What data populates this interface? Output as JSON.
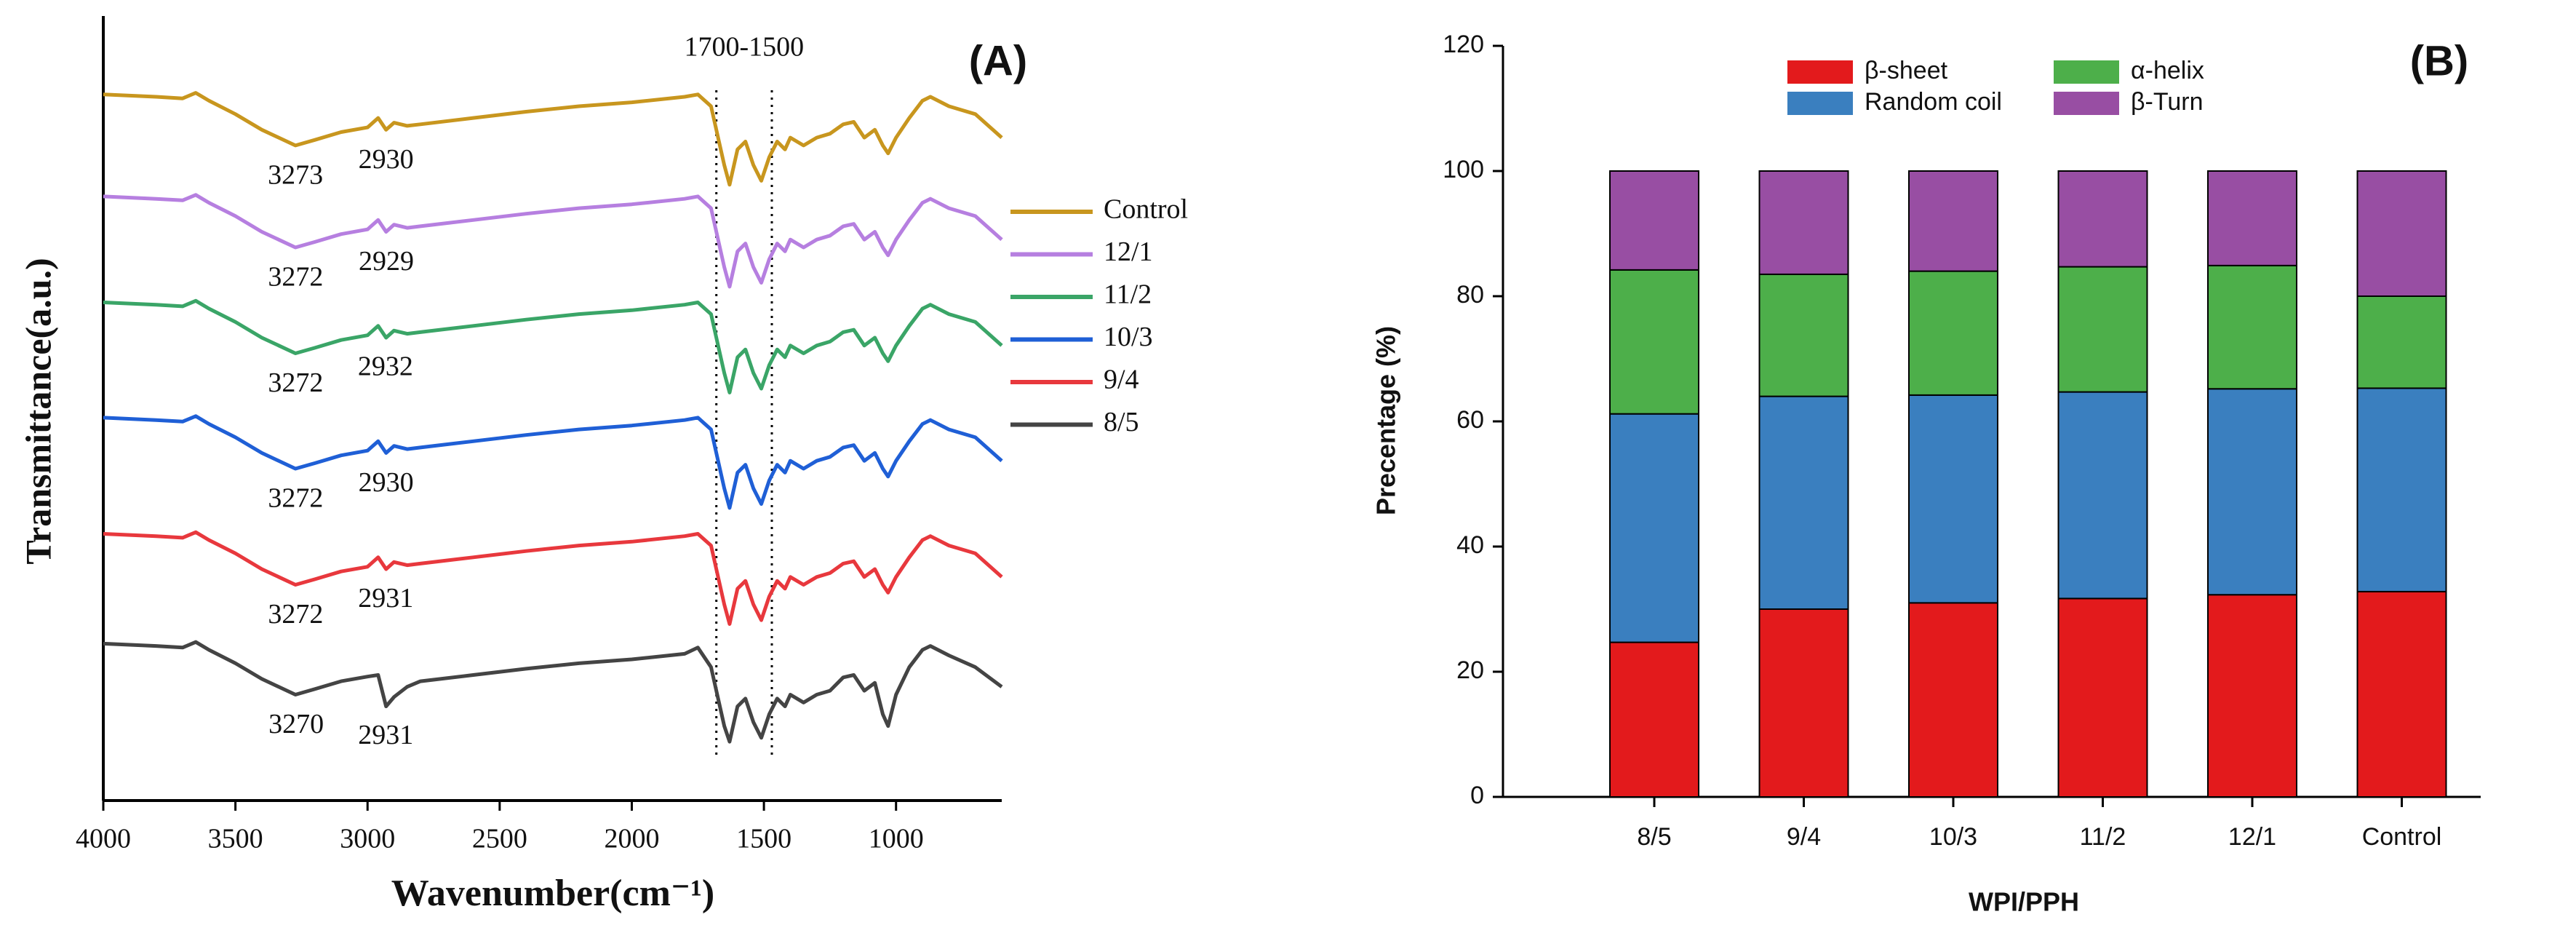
{
  "chart_data": [
    {
      "type": "line",
      "panel_label": "(A)",
      "x_label": "Wavenumber(cm⁻¹)",
      "y_label": "Transmittance(a.u.)",
      "xlim": [
        4000,
        600
      ],
      "xticks": [
        4000,
        3500,
        3000,
        2500,
        2000,
        1500,
        1000
      ],
      "ylim": [
        0,
        100
      ],
      "grid": false,
      "region": {
        "label": "1700-1500",
        "bounds": [
          1680,
          1470
        ]
      },
      "x": [
        4000,
        3800,
        3700,
        3650,
        3600,
        3500,
        3400,
        3273,
        3200,
        3100,
        3000,
        2960,
        2930,
        2900,
        2850,
        2800,
        2600,
        2400,
        2200,
        2000,
        1800,
        1750,
        1700,
        1650,
        1630,
        1600,
        1570,
        1540,
        1510,
        1480,
        1450,
        1420,
        1400,
        1350,
        1300,
        1250,
        1200,
        1160,
        1120,
        1080,
        1050,
        1030,
        1000,
        950,
        900,
        870,
        800,
        700,
        600
      ],
      "series": [
        {
          "name": "Control",
          "color": "#c8961e",
          "peaks": [
            3273,
            2930
          ],
          "values": [
            90,
            89.7,
            89.5,
            90.2,
            89.2,
            87.5,
            85.5,
            83.5,
            84.2,
            85.2,
            85.8,
            87,
            85.5,
            86.4,
            86,
            86.2,
            87,
            87.8,
            88.5,
            89,
            89.7,
            90,
            88.5,
            81,
            78.5,
            83,
            84,
            81,
            79,
            82,
            84,
            83,
            84.5,
            83.5,
            84.5,
            85,
            86.2,
            86.5,
            84.5,
            85.5,
            83.5,
            82.5,
            84.5,
            87,
            89.2,
            89.7,
            88.5,
            87.5,
            84.5
          ]
        },
        {
          "name": "12/1",
          "color": "#b67fe0",
          "peaks": [
            3272,
            2929
          ],
          "values": [
            77,
            76.7,
            76.5,
            77.2,
            76.2,
            74.5,
            72.5,
            70.5,
            71.2,
            72.2,
            72.8,
            74,
            72.5,
            73.4,
            73,
            73.2,
            74,
            74.8,
            75.5,
            76,
            76.7,
            77,
            75.5,
            68,
            65.5,
            70,
            71,
            68,
            66,
            69,
            71,
            70,
            71.5,
            70.5,
            71.5,
            72,
            73.2,
            73.5,
            71.5,
            72.5,
            70.5,
            69.5,
            71.5,
            74,
            76.2,
            76.7,
            75.5,
            74.5,
            71.5
          ]
        },
        {
          "name": "11/2",
          "color": "#3aa567",
          "peaks": [
            3272,
            2932
          ],
          "values": [
            63.5,
            63.2,
            63,
            63.7,
            62.7,
            61,
            59,
            57,
            57.7,
            58.7,
            59.3,
            60.5,
            59,
            59.9,
            59.5,
            59.7,
            60.5,
            61.3,
            62,
            62.5,
            63.2,
            63.5,
            62,
            54.5,
            52,
            56.5,
            57.5,
            54.5,
            52.5,
            55.5,
            57.5,
            56.5,
            58,
            57,
            58,
            58.5,
            59.7,
            60,
            58,
            59,
            57,
            56,
            58,
            60.5,
            62.7,
            63.2,
            62,
            61,
            58
          ]
        },
        {
          "name": "10/3",
          "color": "#1f5fd6",
          "peaks": [
            3272,
            2930
          ],
          "values": [
            48.8,
            48.5,
            48.3,
            49,
            48,
            46.3,
            44.3,
            42.3,
            43,
            44,
            44.6,
            45.8,
            44.3,
            45.2,
            44.8,
            45,
            45.8,
            46.6,
            47.3,
            47.8,
            48.5,
            48.8,
            47.3,
            39.8,
            37.3,
            41.8,
            42.8,
            39.8,
            37.8,
            40.8,
            42.8,
            41.8,
            43.3,
            42.3,
            43.3,
            43.8,
            45,
            45.3,
            43.3,
            44.3,
            42.3,
            41.3,
            43.3,
            45.8,
            48,
            48.5,
            47.3,
            46.3,
            43.3
          ]
        },
        {
          "name": "9/4",
          "color": "#e8383d",
          "peaks": [
            3272,
            2931
          ],
          "values": [
            34,
            33.7,
            33.5,
            34.2,
            33.2,
            31.5,
            29.5,
            27.5,
            28.2,
            29.2,
            29.8,
            31,
            29.5,
            30.4,
            30,
            30.2,
            31,
            31.8,
            32.5,
            33,
            33.7,
            34,
            32.5,
            25,
            22.5,
            27,
            28,
            25,
            23,
            26,
            28,
            27,
            28.5,
            27.5,
            28.5,
            29,
            30.2,
            30.5,
            28.5,
            29.5,
            27.5,
            26.5,
            28.5,
            31,
            33.2,
            33.7,
            32.5,
            31.5,
            28.5
          ]
        },
        {
          "name": "8/5",
          "color": "#444444",
          "peaks": [
            3270,
            2931
          ],
          "values": [
            20,
            19.7,
            19.5,
            20.2,
            19.2,
            17.5,
            15.5,
            13.5,
            14.2,
            15.2,
            15.8,
            16,
            12,
            13.2,
            14.5,
            15.2,
            16,
            16.8,
            17.5,
            18,
            18.7,
            19.5,
            17,
            9.5,
            7.5,
            12,
            13,
            10,
            8,
            11,
            13,
            12,
            13.5,
            12.5,
            13.5,
            14,
            15.7,
            16,
            14,
            15,
            11,
            9.5,
            13.5,
            17,
            19.2,
            19.7,
            18.5,
            17,
            14.5
          ]
        }
      ]
    },
    {
      "type": "bar",
      "stacked": true,
      "panel_label": "(B)",
      "x_label": "WPI/PPH",
      "y_label": "Precentage (%)",
      "categories": [
        "8/5",
        "9/4",
        "10/3",
        "11/2",
        "12/1",
        "Control"
      ],
      "ylim": [
        0,
        120
      ],
      "yticks": [
        0,
        20,
        40,
        60,
        80,
        100,
        120
      ],
      "grid": false,
      "series": [
        {
          "name": "β-sheet",
          "color": "#e31a1c",
          "values": [
            24.7,
            30,
            31,
            31.7,
            32.3,
            32.8
          ]
        },
        {
          "name": "Random coil",
          "color": "#3a7fbf",
          "values": [
            36.5,
            34,
            33.2,
            33,
            32.9,
            32.5
          ]
        },
        {
          "name": "α-helix",
          "color": "#4daf4a",
          "values": [
            23,
            19.5,
            19.8,
            20,
            19.7,
            14.7
          ]
        },
        {
          "name": "β-Turn",
          "color": "#984ea3",
          "values": [
            15.8,
            16.5,
            16,
            15.3,
            15.1,
            20
          ]
        }
      ]
    }
  ]
}
